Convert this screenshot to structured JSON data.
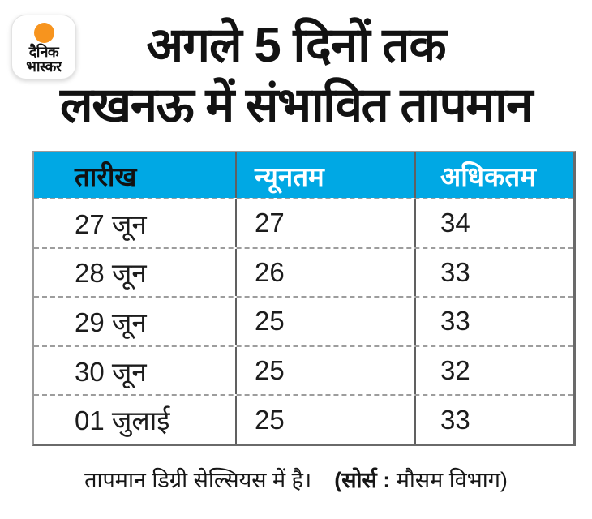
{
  "brand": {
    "logo_line1": "दैनिक",
    "logo_line2": "भास्कर"
  },
  "title": {
    "line1": "अगले 5 दिनों तक",
    "line2": "लखनऊ में संभावित तापमान"
  },
  "footer": {
    "note": "तापमान डिग्री सेल्सियस में है।",
    "source_bold": "(सोर्स :",
    "source_rest": " मौसम विभाग)"
  },
  "colors": {
    "header_bg": "#00A8E4",
    "sun_orange": "#F7941E"
  },
  "chart_data": {
    "type": "table",
    "title": "अगले 5 दिनों तक लखनऊ में संभावित तापमान",
    "columns": [
      "तारीख",
      "न्यूनतम",
      "अधिकतम"
    ],
    "rows": [
      [
        "27 जून",
        "27",
        "34"
      ],
      [
        "28 जून",
        "26",
        "33"
      ],
      [
        "29 जून",
        "25",
        "33"
      ],
      [
        "30 जून",
        "25",
        "32"
      ],
      [
        "01 जुलाई",
        "25",
        "33"
      ]
    ],
    "note": "तापमान डिग्री सेल्सियस में है।",
    "source": "मौसम विभाग",
    "units": "°C"
  }
}
